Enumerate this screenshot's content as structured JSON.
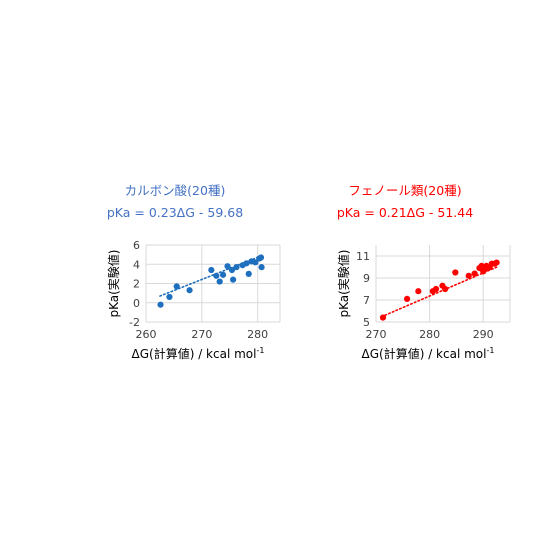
{
  "chart_data": [
    {
      "type": "scatter",
      "title": "カルボン酸(20種)",
      "subtitle": "pKa = 0.23ΔG - 59.68",
      "xlabel": "ΔG(計算値) / kcal mol",
      "xlabel_sup": "-1",
      "ylabel": "pKa(実験値)",
      "xlim": [
        260,
        284
      ],
      "ylim": [
        -2,
        6
      ],
      "xticks": [
        260,
        270,
        280
      ],
      "yticks": [
        -2,
        0,
        2,
        4,
        6
      ],
      "grid": true,
      "trendline": {
        "slope": 0.23,
        "intercept": -59.68,
        "x_range": [
          262.5,
          281
        ]
      },
      "color": "#1f6fbf",
      "title_color": "#4472c4",
      "points": [
        {
          "x": 262.6,
          "y": -0.2
        },
        {
          "x": 264.2,
          "y": 0.6
        },
        {
          "x": 265.5,
          "y": 1.7
        },
        {
          "x": 267.8,
          "y": 1.3
        },
        {
          "x": 271.7,
          "y": 3.4
        },
        {
          "x": 272.6,
          "y": 2.8
        },
        {
          "x": 273.2,
          "y": 2.2
        },
        {
          "x": 273.8,
          "y": 2.9
        },
        {
          "x": 274.6,
          "y": 3.8
        },
        {
          "x": 275.4,
          "y": 3.4
        },
        {
          "x": 275.6,
          "y": 2.4
        },
        {
          "x": 276.2,
          "y": 3.7
        },
        {
          "x": 277.3,
          "y": 3.9
        },
        {
          "x": 278.0,
          "y": 4.1
        },
        {
          "x": 278.4,
          "y": 3.0
        },
        {
          "x": 278.9,
          "y": 4.3
        },
        {
          "x": 279.6,
          "y": 4.2
        },
        {
          "x": 280.3,
          "y": 4.6
        },
        {
          "x": 280.6,
          "y": 4.7
        },
        {
          "x": 280.7,
          "y": 3.7
        }
      ]
    },
    {
      "type": "scatter",
      "title": "フェノール類(20種)",
      "subtitle": "pKa = 0.21ΔG - 51.44",
      "xlabel": "ΔG(計算値) / kcal mol",
      "xlabel_sup": "-1",
      "ylabel": "pKa(実験値)",
      "xlim": [
        270,
        295
      ],
      "ylim": [
        5,
        12
      ],
      "xticks": [
        270,
        280,
        290
      ],
      "yticks": [
        5,
        7,
        9,
        11
      ],
      "grid": true,
      "trendline": {
        "slope": 0.21,
        "intercept": -51.44,
        "x_range": [
          271,
          292.5
        ]
      },
      "color": "#ff0000",
      "title_color": "#ff0000",
      "points": [
        {
          "x": 271.3,
          "y": 5.4
        },
        {
          "x": 275.8,
          "y": 7.1
        },
        {
          "x": 277.9,
          "y": 7.8
        },
        {
          "x": 280.6,
          "y": 7.8
        },
        {
          "x": 281.2,
          "y": 8.0
        },
        {
          "x": 282.4,
          "y": 8.3
        },
        {
          "x": 282.9,
          "y": 8.0
        },
        {
          "x": 284.8,
          "y": 9.5
        },
        {
          "x": 287.3,
          "y": 9.2
        },
        {
          "x": 288.4,
          "y": 9.4
        },
        {
          "x": 289.3,
          "y": 9.9
        },
        {
          "x": 289.7,
          "y": 10.1
        },
        {
          "x": 290.0,
          "y": 9.6
        },
        {
          "x": 290.3,
          "y": 9.8
        },
        {
          "x": 290.6,
          "y": 10.1
        },
        {
          "x": 290.9,
          "y": 9.9
        },
        {
          "x": 291.2,
          "y": 10.0
        },
        {
          "x": 291.6,
          "y": 10.3
        },
        {
          "x": 292.1,
          "y": 10.3
        },
        {
          "x": 292.5,
          "y": 10.4
        }
      ]
    }
  ]
}
